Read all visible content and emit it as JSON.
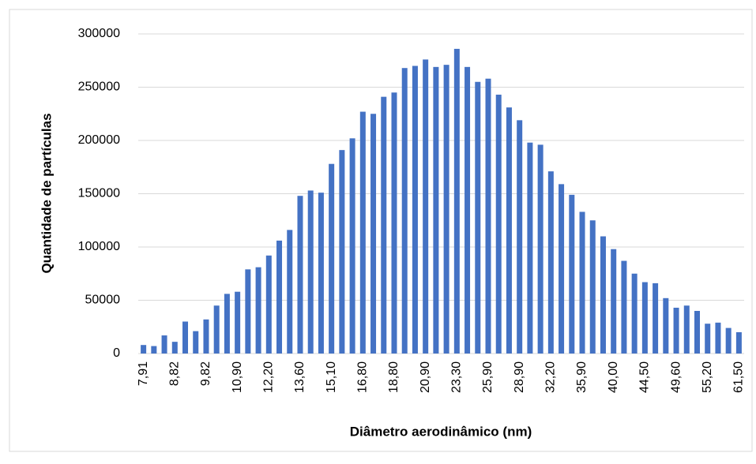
{
  "chart_data": {
    "type": "bar",
    "x_label": "Diâmetro aerodinâmico (nm)",
    "y_label": "Quantidade de partículas",
    "categories": [
      "7,91",
      null,
      null,
      "8,82",
      null,
      null,
      "9,82",
      null,
      null,
      "10,90",
      null,
      null,
      "12,20",
      null,
      null,
      "13,60",
      null,
      null,
      "15,10",
      null,
      null,
      "16,80",
      null,
      null,
      "18,80",
      null,
      null,
      "20,90",
      null,
      null,
      "23,30",
      null,
      null,
      "25,90",
      null,
      null,
      "28,90",
      null,
      null,
      "32,20",
      null,
      null,
      "35,90",
      null,
      null,
      "40,00",
      null,
      null,
      "44,50",
      null,
      null,
      "49,60",
      null,
      null,
      "55,20",
      null,
      null,
      "61,50"
    ],
    "values": [
      8000,
      7000,
      17000,
      11000,
      30000,
      21000,
      32000,
      45000,
      56000,
      58000,
      79000,
      81000,
      92000,
      106000,
      116000,
      148000,
      153000,
      151000,
      178000,
      191000,
      202000,
      227000,
      225000,
      241000,
      245000,
      268000,
      270000,
      276000,
      269000,
      271000,
      286000,
      269000,
      255000,
      258000,
      243000,
      231000,
      219000,
      198000,
      196000,
      171000,
      159000,
      149000,
      133000,
      125000,
      110000,
      98000,
      87000,
      75000,
      67000,
      66000,
      52000,
      43000,
      45000,
      40000,
      28000,
      29000,
      24000,
      20000
    ],
    "color": "#4472c4",
    "ylim": [
      0,
      300000
    ],
    "yticks": [
      0,
      50000,
      100000,
      150000,
      200000,
      250000,
      300000
    ],
    "grid": true
  }
}
